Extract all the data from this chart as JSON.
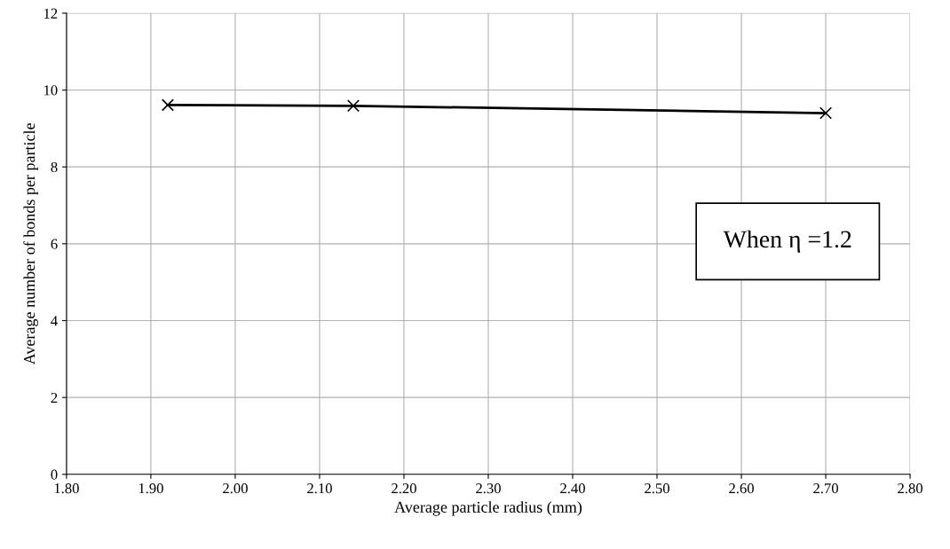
{
  "chart_data": {
    "type": "line",
    "xlabel": "Average particle radius (mm)",
    "ylabel": "Average number of bonds per particle",
    "x": [
      1.92,
      2.14,
      2.7
    ],
    "series": [
      {
        "color": "#000000",
        "values": [
          9.61,
          9.59,
          9.4
        ]
      }
    ],
    "xlim": [
      1.8,
      2.8
    ],
    "xticks": [
      {
        "value": 1.8,
        "label": "1.80"
      },
      {
        "value": 1.9,
        "label": "1.90"
      },
      {
        "value": 2.0,
        "label": "2.00"
      },
      {
        "value": 2.1,
        "label": "2.10"
      },
      {
        "value": 2.2,
        "label": "2.20"
      },
      {
        "value": 2.3,
        "label": "2.30"
      },
      {
        "value": 2.4,
        "label": "2.40"
      },
      {
        "value": 2.5,
        "label": "2.50"
      },
      {
        "value": 2.6,
        "label": "2.60"
      },
      {
        "value": 2.7,
        "label": "2.70"
      },
      {
        "value": 2.8,
        "label": "2.80"
      }
    ],
    "ylim": [
      0,
      12
    ],
    "yticks": [
      0,
      2,
      4,
      6,
      8,
      10,
      12
    ],
    "grid": true,
    "marker": "cross",
    "line_style": "solid",
    "annotations": [
      "When η =1.2"
    ]
  }
}
